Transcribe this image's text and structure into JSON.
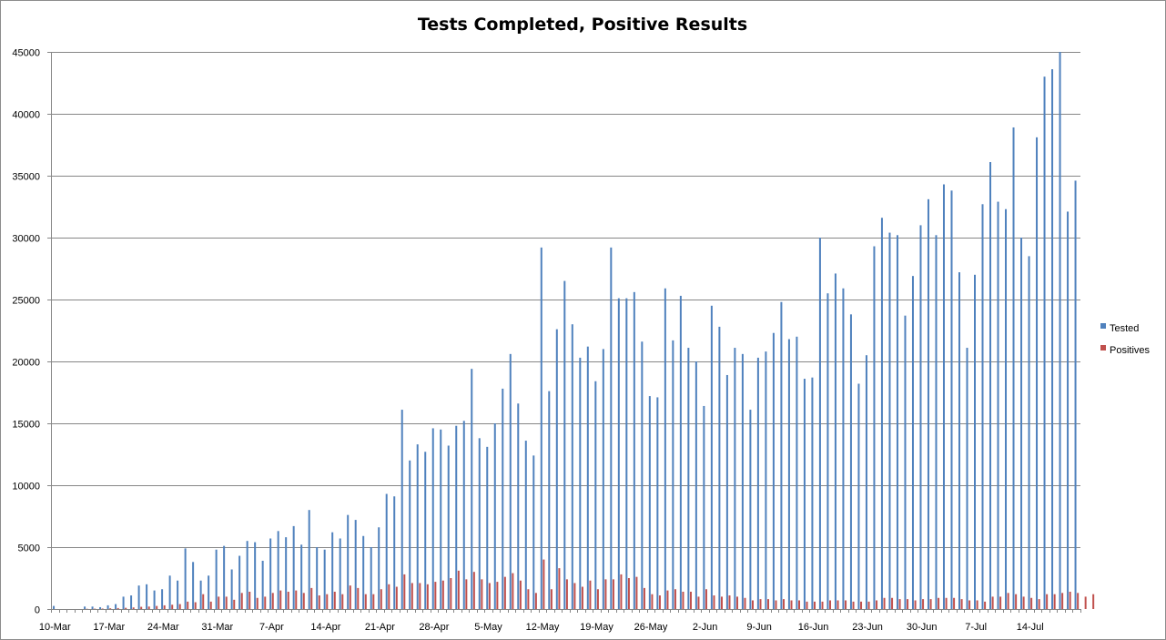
{
  "chart_data": {
    "type": "bar",
    "title": "Tests Completed, Positive Results",
    "xlabel": "",
    "ylabel": "",
    "ylim": [
      0,
      45000
    ],
    "y_ticks": [
      0,
      5000,
      10000,
      15000,
      20000,
      25000,
      30000,
      35000,
      40000,
      45000
    ],
    "x_tick_labels": [
      "10-Mar",
      "17-Mar",
      "24-Mar",
      "31-Mar",
      "7-Apr",
      "14-Apr",
      "21-Apr",
      "28-Apr",
      "5-May",
      "12-May",
      "19-May",
      "26-May",
      "2-Jun",
      "9-Jun",
      "16-Jun",
      "23-Jun",
      "30-Jun",
      "7-Jul",
      "14-Jul"
    ],
    "start_date": "10-Mar",
    "grid": true,
    "legend_position": "right",
    "series": [
      {
        "name": "Tested",
        "color": "#4f81bd",
        "values": [
          250,
          0,
          0,
          0,
          200,
          200,
          150,
          300,
          400,
          1000,
          1100,
          1900,
          2000,
          1500,
          1600,
          2700,
          2300,
          4900,
          3800,
          2300,
          2700,
          4800,
          5100,
          3200,
          4300,
          5500,
          5400,
          3900,
          5700,
          6300,
          5800,
          6700,
          5200,
          8000,
          5000,
          4800,
          6200,
          5700,
          7600,
          7200,
          5900,
          5000,
          6600,
          9300,
          9100,
          16100,
          12000,
          13300,
          12700,
          14600,
          14500,
          13200,
          14800,
          15200,
          19400,
          13800,
          13100,
          15000,
          17800,
          20600,
          16600,
          13600,
          12400,
          29200,
          17600,
          22600,
          26500,
          23000,
          20300,
          21200,
          18400,
          21000,
          29200,
          25100,
          25100,
          25600,
          21600,
          17200,
          17100,
          25900,
          21700,
          25300,
          21100,
          20000,
          16400,
          24500,
          22800,
          18900,
          21100,
          20600,
          16100,
          20300,
          20800,
          22300,
          24800,
          21800,
          22000,
          18600,
          18700,
          30000,
          25500,
          27100,
          25900,
          23800,
          18200,
          20500,
          29300,
          31600,
          30400,
          30200,
          23700,
          26900,
          31000,
          33100,
          30200,
          34300,
          33800,
          27200,
          21100,
          27000,
          32700,
          36100,
          32900,
          32300,
          38900,
          30000,
          28500,
          38100,
          43000,
          43600,
          45000,
          32100,
          34600
        ]
      },
      {
        "name": "Positives",
        "color": "#c0504d",
        "values": [
          0,
          0,
          0,
          0,
          20,
          30,
          40,
          60,
          80,
          100,
          130,
          180,
          200,
          250,
          300,
          350,
          400,
          600,
          550,
          1200,
          600,
          1000,
          1000,
          750,
          1300,
          1400,
          900,
          1000,
          1300,
          1500,
          1400,
          1500,
          1300,
          1700,
          1100,
          1200,
          1400,
          1200,
          1900,
          1700,
          1200,
          1200,
          1600,
          2000,
          1800,
          2800,
          2100,
          2100,
          2000,
          2200,
          2300,
          2500,
          3100,
          2400,
          3000,
          2400,
          2100,
          2200,
          2600,
          2900,
          2300,
          1600,
          1300,
          4000,
          1600,
          3300,
          2400,
          2100,
          1800,
          2300,
          1600,
          2400,
          2400,
          2800,
          2500,
          2600,
          1700,
          1200,
          1100,
          1500,
          1600,
          1400,
          1400,
          1000,
          1600,
          1100,
          1000,
          1100,
          1000,
          900,
          700,
          800,
          800,
          700,
          800,
          700,
          700,
          600,
          600,
          600,
          700,
          700,
          700,
          600,
          600,
          600,
          700,
          900,
          900,
          800,
          800,
          700,
          800,
          800,
          900,
          900,
          900,
          800,
          700,
          700,
          600,
          1000,
          1000,
          1300,
          1200,
          1000,
          900,
          800,
          1200,
          1200,
          1300,
          1400,
          1300,
          1000,
          1200
        ]
      }
    ]
  }
}
